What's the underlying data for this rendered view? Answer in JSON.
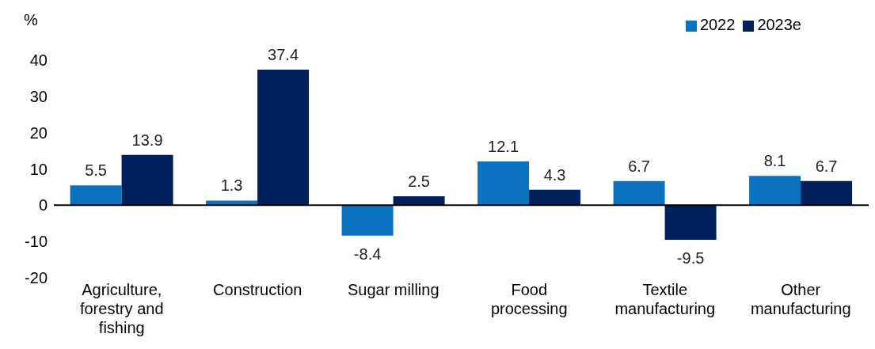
{
  "chart_data": {
    "type": "bar",
    "ylabel": "%",
    "categories": [
      "Agriculture, forestry and fishing",
      "Construction",
      "Sugar milling",
      "Food processing",
      "Textile manufacturing",
      "Other manufacturing"
    ],
    "series": [
      {
        "name": "2022",
        "color": "#0b72c0",
        "values": [
          5.5,
          1.3,
          -8.4,
          12.1,
          6.7,
          8.1
        ]
      },
      {
        "name": "2023e",
        "color": "#00205b",
        "values": [
          13.9,
          37.4,
          2.5,
          4.3,
          -9.5,
          6.7
        ]
      }
    ],
    "ylim": [
      -20,
      40
    ],
    "yticks": [
      -20,
      -10,
      0,
      10,
      20,
      30,
      40
    ],
    "legend": "top right",
    "data_labels": true
  }
}
